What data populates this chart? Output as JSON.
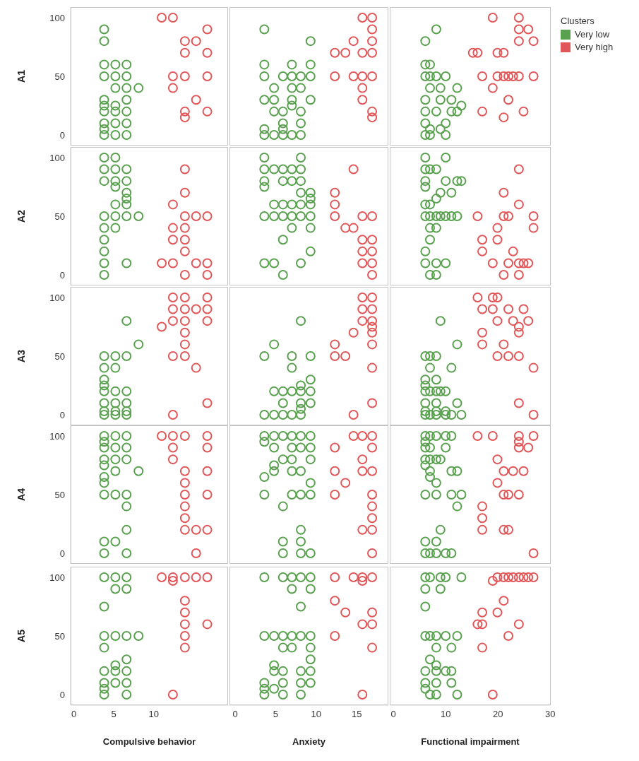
{
  "chart_data": [
    {
      "type": "scatter",
      "ylabel": "A1",
      "xlim": [
        -0.4,
        19.3
      ],
      "xticks": [
        0,
        5,
        10
      ],
      "ylim": [
        -9,
        109
      ],
      "yticks": [
        0,
        50,
        100
      ],
      "tick_labels": "y",
      "marker": "circle",
      "series": [
        {
          "color": "#59a14f",
          "x": [
            3.8,
            3.8,
            3.8,
            5.2,
            6.6,
            3.8,
            5.2,
            6.6,
            5.2,
            6.6,
            8.1,
            3.8,
            6.6,
            3.8,
            5.2,
            3.8,
            5.2,
            6.6,
            3.8,
            5.2,
            6.6,
            3.8,
            3.8,
            5.2,
            6.6
          ],
          "values": [
            90,
            80,
            60,
            60,
            60,
            50,
            50,
            50,
            40,
            40,
            40,
            30,
            30,
            25,
            25,
            20,
            20,
            20,
            10,
            10,
            10,
            5,
            0,
            0,
            0
          ]
        },
        {
          "color": "#e15759",
          "x": [
            11.0,
            12.4,
            16.7,
            13.9,
            15.3,
            13.9,
            16.7,
            12.4,
            13.9,
            16.7,
            12.4,
            15.3,
            13.9,
            16.7,
            13.9
          ],
          "values": [
            100,
            100,
            90,
            80,
            80,
            70,
            70,
            50,
            50,
            50,
            40,
            30,
            20,
            20,
            15
          ]
        }
      ]
    },
    {
      "type": "scatter",
      "xlim": [
        -0.7,
        18.9
      ],
      "xticks": [
        0,
        5,
        10,
        15
      ],
      "ylim": [
        -9,
        109
      ],
      "yticks": [
        0,
        50,
        100
      ],
      "tick_labels": false,
      "marker": "circle",
      "series": [
        {
          "color": "#59a14f",
          "x": [
            3.6,
            9.3,
            3.6,
            7.0,
            9.3,
            3.6,
            5.9,
            7.0,
            8.1,
            9.3,
            4.8,
            7.0,
            8.1,
            3.6,
            4.8,
            7.0,
            9.3,
            7.0,
            4.8,
            5.9,
            8.1,
            5.9,
            8.1,
            3.6,
            5.9,
            3.6,
            4.8,
            5.9,
            7.0,
            8.1
          ],
          "values": [
            90,
            80,
            60,
            60,
            60,
            50,
            50,
            50,
            50,
            50,
            40,
            40,
            40,
            30,
            30,
            30,
            30,
            25,
            20,
            20,
            20,
            10,
            10,
            5,
            5,
            0,
            0,
            0,
            0,
            0
          ]
        },
        {
          "color": "#e15759",
          "x": [
            15.7,
            16.9,
            16.9,
            14.6,
            16.9,
            12.3,
            13.6,
            15.7,
            16.9,
            12.3,
            14.6,
            15.7,
            16.9,
            15.7,
            15.7,
            16.9,
            16.9
          ],
          "values": [
            100,
            100,
            90,
            80,
            80,
            70,
            70,
            70,
            70,
            50,
            50,
            50,
            50,
            40,
            30,
            20,
            15
          ]
        }
      ]
    },
    {
      "type": "scatter",
      "xlim": [
        -0.7,
        30.1
      ],
      "xticks": [
        0,
        10,
        20,
        30
      ],
      "ylim": [
        -9,
        109
      ],
      "yticks": [
        0,
        50,
        100
      ],
      "tick_labels": false,
      "marker": "circle",
      "legend": "right",
      "legend_title": "Clusters",
      "series": [
        {
          "name": "Very low",
          "color": "#59a14f",
          "x": [
            8.2,
            6.1,
            6.1,
            7.0,
            6.1,
            7.0,
            8.2,
            10.0,
            7.0,
            9.0,
            12.2,
            6.1,
            9.0,
            11.1,
            13.0,
            6.1,
            8.2,
            11.1,
            12.2,
            6.1,
            10.0,
            7.0,
            9.0,
            6.1,
            7.0,
            10.0
          ],
          "values": [
            90,
            80,
            60,
            60,
            50,
            50,
            50,
            50,
            40,
            40,
            40,
            30,
            30,
            30,
            25,
            20,
            20,
            20,
            20,
            10,
            10,
            5,
            5,
            0,
            0,
            0
          ]
        },
        {
          "name": "Very high",
          "color": "#e15759",
          "x": [
            19.0,
            24.0,
            24.0,
            25.8,
            24.0,
            26.8,
            15.2,
            16.1,
            19.9,
            21.1,
            17.0,
            19.9,
            21.1,
            22.0,
            22.9,
            24.0,
            26.8,
            19.0,
            22.0,
            17.0,
            24.9,
            21.1
          ],
          "values": [
            100,
            100,
            90,
            90,
            80,
            80,
            70,
            70,
            70,
            70,
            50,
            50,
            50,
            50,
            50,
            50,
            50,
            40,
            30,
            20,
            20,
            15
          ]
        }
      ]
    },
    {
      "type": "scatter",
      "ylabel": "A2",
      "xlim": [
        -0.4,
        19.3
      ],
      "xticks": [
        0,
        5,
        10
      ],
      "ylim": [
        -9,
        109
      ],
      "yticks": [
        0,
        50,
        100
      ],
      "tick_labels": "y",
      "marker": "circle",
      "series": [
        {
          "color": "#59a14f",
          "x": [
            3.8,
            5.2,
            3.8,
            5.2,
            6.6,
            3.8,
            5.2,
            6.6,
            5.2,
            6.6,
            6.6,
            5.2,
            6.6,
            3.8,
            5.2,
            6.6,
            8.1,
            3.8,
            5.2,
            3.8,
            3.8,
            3.8,
            6.6,
            3.8
          ],
          "values": [
            100,
            100,
            90,
            90,
            90,
            80,
            80,
            80,
            75,
            70,
            65,
            60,
            60,
            50,
            50,
            50,
            50,
            40,
            40,
            30,
            20,
            10,
            10,
            0
          ]
        },
        {
          "color": "#e15759",
          "x": [
            13.9,
            13.9,
            12.4,
            13.9,
            15.3,
            16.7,
            12.4,
            13.9,
            12.4,
            13.9,
            13.9,
            11.0,
            12.4,
            15.3,
            16.7,
            13.9,
            16.7
          ],
          "values": [
            90,
            70,
            60,
            50,
            50,
            50,
            40,
            40,
            30,
            30,
            20,
            10,
            10,
            10,
            10,
            0,
            0
          ]
        }
      ]
    },
    {
      "type": "scatter",
      "xlim": [
        -0.7,
        18.9
      ],
      "xticks": [
        0,
        5,
        10,
        15
      ],
      "ylim": [
        -9,
        109
      ],
      "yticks": [
        0,
        50,
        100
      ],
      "tick_labels": false,
      "marker": "circle",
      "series": [
        {
          "color": "#59a14f",
          "x": [
            3.6,
            8.1,
            3.6,
            4.8,
            5.9,
            7.0,
            8.1,
            3.6,
            5.9,
            7.0,
            8.1,
            3.6,
            8.1,
            9.3,
            9.3,
            4.8,
            5.9,
            7.0,
            8.1,
            9.3,
            3.6,
            4.8,
            5.9,
            7.0,
            8.1,
            9.3,
            7.0,
            9.3,
            5.9,
            9.3,
            3.6,
            4.8,
            8.1,
            5.9
          ],
          "values": [
            100,
            100,
            90,
            90,
            90,
            90,
            90,
            80,
            80,
            80,
            80,
            75,
            70,
            70,
            65,
            60,
            60,
            60,
            60,
            60,
            50,
            50,
            50,
            50,
            50,
            50,
            40,
            40,
            30,
            20,
            10,
            10,
            10,
            0
          ]
        },
        {
          "color": "#e15759",
          "x": [
            14.6,
            12.3,
            12.3,
            12.3,
            15.7,
            16.9,
            13.6,
            14.6,
            15.7,
            16.9,
            15.7,
            16.9,
            15.7,
            16.9,
            16.9
          ],
          "values": [
            90,
            70,
            60,
            50,
            50,
            50,
            40,
            40,
            30,
            30,
            20,
            20,
            10,
            10,
            0
          ]
        }
      ]
    },
    {
      "type": "scatter",
      "xlim": [
        -0.7,
        30.1
      ],
      "xticks": [
        0,
        10,
        20,
        30
      ],
      "ylim": [
        -9,
        109
      ],
      "yticks": [
        0,
        50,
        100
      ],
      "tick_labels": false,
      "marker": "circle",
      "series": [
        {
          "color": "#59a14f",
          "x": [
            6.1,
            10.0,
            6.1,
            7.0,
            8.2,
            6.1,
            10.0,
            12.2,
            13.0,
            6.1,
            9.0,
            11.1,
            8.2,
            6.1,
            7.0,
            6.1,
            7.0,
            8.2,
            9.0,
            10.0,
            11.1,
            12.2,
            7.0,
            8.2,
            7.0,
            6.1,
            6.1,
            8.2,
            10.0,
            7.0,
            8.2
          ],
          "values": [
            100,
            100,
            90,
            90,
            90,
            80,
            80,
            80,
            80,
            75,
            70,
            70,
            65,
            60,
            60,
            50,
            50,
            50,
            50,
            50,
            50,
            50,
            40,
            40,
            30,
            20,
            10,
            10,
            10,
            0,
            0
          ]
        },
        {
          "color": "#e15759",
          "x": [
            24.0,
            21.1,
            24.0,
            16.1,
            21.1,
            22.0,
            26.8,
            19.9,
            26.8,
            17.0,
            19.9,
            17.0,
            22.9,
            19.0,
            22.0,
            24.0,
            24.9,
            25.8,
            21.1,
            24.0
          ],
          "values": [
            90,
            70,
            60,
            50,
            50,
            50,
            50,
            40,
            40,
            30,
            30,
            20,
            20,
            10,
            10,
            10,
            10,
            10,
            0,
            0
          ]
        }
      ]
    },
    {
      "type": "scatter",
      "ylabel": "A3",
      "xlim": [
        -0.4,
        19.3
      ],
      "xticks": [
        0,
        5,
        10
      ],
      "ylim": [
        -9,
        109
      ],
      "yticks": [
        0,
        50,
        100
      ],
      "tick_labels": "y",
      "marker": "circle",
      "series": [
        {
          "color": "#59a14f",
          "x": [
            6.6,
            8.1,
            3.8,
            5.2,
            6.6,
            3.8,
            5.2,
            3.8,
            3.8,
            3.8,
            5.2,
            6.6,
            3.8,
            5.2,
            6.6,
            3.8,
            5.2,
            6.6,
            3.8,
            5.2,
            6.6
          ],
          "values": [
            80,
            60,
            50,
            50,
            50,
            40,
            40,
            30,
            25,
            20,
            20,
            20,
            10,
            10,
            10,
            3,
            3,
            3,
            0,
            0,
            0
          ]
        },
        {
          "color": "#e15759",
          "x": [
            12.4,
            13.9,
            16.7,
            12.4,
            13.9,
            15.3,
            16.7,
            12.4,
            13.9,
            16.7,
            11.0,
            13.9,
            13.9,
            12.4,
            13.9,
            15.3,
            16.7,
            12.4
          ],
          "values": [
            100,
            100,
            100,
            90,
            90,
            90,
            90,
            80,
            80,
            80,
            75,
            70,
            60,
            50,
            50,
            40,
            10,
            0
          ]
        }
      ]
    },
    {
      "type": "scatter",
      "xlim": [
        -0.7,
        18.9
      ],
      "xticks": [
        0,
        5,
        10,
        15
      ],
      "ylim": [
        -9,
        109
      ],
      "yticks": [
        0,
        50,
        100
      ],
      "tick_labels": false,
      "marker": "circle",
      "series": [
        {
          "color": "#59a14f",
          "x": [
            8.1,
            4.8,
            3.6,
            7.0,
            9.3,
            7.0,
            9.3,
            8.1,
            4.8,
            5.9,
            7.0,
            8.1,
            9.3,
            5.9,
            8.1,
            9.3,
            8.1,
            3.6,
            4.8,
            5.9,
            7.0,
            8.1
          ],
          "values": [
            80,
            60,
            50,
            50,
            50,
            40,
            30,
            25,
            20,
            20,
            20,
            20,
            20,
            10,
            10,
            10,
            5,
            0,
            0,
            0,
            0,
            0
          ]
        },
        {
          "color": "#e15759",
          "x": [
            15.7,
            16.9,
            15.7,
            16.9,
            15.7,
            16.9,
            16.9,
            14.6,
            16.9,
            12.3,
            16.9,
            12.3,
            13.6,
            16.9,
            16.9,
            14.6
          ],
          "values": [
            100,
            100,
            90,
            90,
            80,
            80,
            75,
            70,
            70,
            60,
            60,
            50,
            50,
            40,
            10,
            0
          ]
        }
      ]
    },
    {
      "type": "scatter",
      "xlim": [
        -0.7,
        30.1
      ],
      "xticks": [
        0,
        10,
        20,
        30
      ],
      "ylim": [
        -9,
        109
      ],
      "yticks": [
        0,
        50,
        100
      ],
      "tick_labels": false,
      "marker": "circle",
      "series": [
        {
          "color": "#59a14f",
          "x": [
            9.0,
            12.2,
            6.1,
            7.0,
            8.2,
            7.0,
            11.1,
            6.1,
            8.2,
            6.1,
            6.1,
            7.0,
            8.2,
            9.0,
            10.0,
            6.1,
            8.2,
            12.2,
            6.1,
            8.2,
            10.0,
            6.1,
            7.0,
            8.2,
            10.0,
            11.1,
            13.0
          ],
          "values": [
            80,
            60,
            50,
            50,
            50,
            40,
            40,
            30,
            30,
            25,
            20,
            20,
            20,
            20,
            20,
            10,
            10,
            10,
            3,
            3,
            3,
            0,
            0,
            0,
            0,
            0,
            0
          ]
        },
        {
          "color": "#e15759",
          "x": [
            16.1,
            19.0,
            19.9,
            17.0,
            19.0,
            22.0,
            24.9,
            19.9,
            22.9,
            25.8,
            24.0,
            17.0,
            24.0,
            17.0,
            21.1,
            19.9,
            22.0,
            24.0,
            26.8,
            24.0,
            26.8
          ],
          "values": [
            100,
            100,
            100,
            90,
            90,
            90,
            90,
            80,
            80,
            80,
            75,
            70,
            70,
            60,
            60,
            50,
            50,
            50,
            40,
            10,
            0
          ]
        }
      ]
    },
    {
      "type": "scatter",
      "ylabel": "A4",
      "xlim": [
        -0.4,
        19.3
      ],
      "xticks": [
        0,
        5,
        10
      ],
      "ylim": [
        -9,
        109
      ],
      "yticks": [
        0,
        50,
        100
      ],
      "tick_labels": "y",
      "marker": "circle",
      "series": [
        {
          "color": "#59a14f",
          "x": [
            3.8,
            5.2,
            6.6,
            3.8,
            3.8,
            5.2,
            6.6,
            3.8,
            5.2,
            6.6,
            3.8,
            5.2,
            8.1,
            3.8,
            3.8,
            3.8,
            5.2,
            6.6,
            6.6,
            6.6,
            3.8,
            5.2,
            3.8,
            6.6
          ],
          "values": [
            100,
            100,
            100,
            95,
            90,
            90,
            90,
            80,
            80,
            80,
            75,
            70,
            70,
            65,
            60,
            50,
            50,
            50,
            40,
            20,
            10,
            10,
            0,
            0
          ]
        },
        {
          "color": "#e15759",
          "x": [
            11.0,
            12.4,
            13.9,
            16.7,
            12.4,
            16.7,
            12.4,
            13.9,
            16.7,
            13.9,
            13.9,
            16.7,
            13.9,
            13.9,
            13.9,
            15.3,
            16.7,
            15.3
          ],
          "values": [
            100,
            100,
            100,
            100,
            90,
            90,
            80,
            70,
            70,
            60,
            50,
            50,
            40,
            30,
            20,
            20,
            20,
            0
          ]
        }
      ]
    },
    {
      "type": "scatter",
      "xlim": [
        -0.7,
        18.9
      ],
      "xticks": [
        0,
        5,
        10,
        15
      ],
      "ylim": [
        -9,
        109
      ],
      "yticks": [
        0,
        50,
        100
      ],
      "tick_labels": false,
      "marker": "circle",
      "series": [
        {
          "color": "#59a14f",
          "x": [
            3.6,
            4.8,
            5.9,
            7.0,
            8.1,
            9.3,
            3.6,
            4.8,
            7.0,
            8.1,
            9.3,
            5.9,
            7.0,
            9.3,
            4.8,
            4.8,
            7.0,
            8.1,
            3.6,
            9.3,
            3.6,
            7.0,
            8.1,
            9.3,
            5.9,
            8.1,
            5.9,
            8.1,
            5.9,
            8.1,
            9.3
          ],
          "values": [
            100,
            100,
            100,
            100,
            100,
            100,
            95,
            90,
            90,
            90,
            90,
            80,
            80,
            80,
            75,
            70,
            70,
            70,
            65,
            60,
            50,
            50,
            50,
            50,
            40,
            20,
            10,
            10,
            0,
            0,
            0
          ]
        },
        {
          "color": "#e15759",
          "x": [
            14.6,
            15.7,
            16.9,
            12.3,
            16.9,
            15.7,
            12.3,
            15.7,
            16.9,
            13.6,
            12.3,
            16.9,
            16.9,
            16.9,
            15.7,
            16.9,
            16.9
          ],
          "values": [
            100,
            100,
            100,
            90,
            90,
            80,
            70,
            70,
            70,
            60,
            50,
            50,
            40,
            30,
            20,
            20,
            0
          ]
        }
      ]
    },
    {
      "type": "scatter",
      "xlim": [
        -0.7,
        30.1
      ],
      "xticks": [
        0,
        10,
        20,
        30
      ],
      "ylim": [
        -9,
        109
      ],
      "yticks": [
        0,
        50,
        100
      ],
      "tick_labels": false,
      "marker": "circle",
      "series": [
        {
          "color": "#59a14f",
          "x": [
            6.1,
            7.0,
            8.2,
            10.0,
            11.1,
            6.1,
            6.1,
            7.0,
            10.0,
            6.1,
            7.0,
            8.2,
            9.0,
            6.1,
            7.0,
            11.1,
            12.2,
            7.0,
            8.2,
            6.1,
            8.2,
            11.1,
            13.0,
            12.2,
            9.0,
            6.1,
            8.2,
            6.1,
            7.0,
            8.2,
            10.0,
            11.1
          ],
          "values": [
            100,
            100,
            100,
            100,
            100,
            95,
            90,
            90,
            90,
            80,
            80,
            80,
            80,
            75,
            70,
            70,
            70,
            65,
            60,
            50,
            50,
            50,
            50,
            40,
            20,
            10,
            10,
            0,
            0,
            0,
            0,
            0
          ]
        },
        {
          "color": "#e15759",
          "x": [
            16.1,
            19.0,
            24.0,
            26.8,
            24.0,
            24.0,
            25.8,
            19.9,
            21.1,
            22.9,
            24.9,
            19.9,
            21.1,
            22.0,
            24.0,
            17.0,
            17.0,
            17.0,
            21.1,
            22.0,
            26.8
          ],
          "values": [
            100,
            100,
            100,
            100,
            95,
            90,
            90,
            80,
            70,
            70,
            70,
            60,
            50,
            50,
            50,
            40,
            30,
            20,
            20,
            20,
            0
          ]
        }
      ]
    },
    {
      "type": "scatter",
      "ylabel": "A5",
      "xlabel": "Compulsive behavior",
      "xlim": [
        -0.4,
        19.3
      ],
      "xticks": [
        0,
        5,
        10
      ],
      "ylim": [
        -9,
        109
      ],
      "yticks": [
        0,
        50,
        100
      ],
      "marker": "circle",
      "series": [
        {
          "color": "#59a14f",
          "x": [
            3.8,
            5.2,
            6.6,
            5.2,
            6.6,
            3.8,
            3.8,
            5.2,
            6.6,
            8.1,
            3.8,
            6.6,
            5.2,
            3.8,
            5.2,
            6.6,
            3.8,
            5.2,
            6.6,
            3.8,
            3.8,
            6.6
          ],
          "values": [
            100,
            100,
            100,
            90,
            90,
            75,
            50,
            50,
            50,
            50,
            40,
            30,
            25,
            20,
            20,
            20,
            10,
            10,
            10,
            5,
            0,
            0
          ]
        },
        {
          "color": "#e15759",
          "x": [
            11.0,
            12.4,
            13.9,
            15.3,
            16.7,
            12.4,
            13.9,
            13.9,
            13.9,
            16.7,
            13.9,
            13.9,
            12.4
          ],
          "values": [
            100,
            100,
            100,
            100,
            100,
            97,
            80,
            70,
            60,
            60,
            50,
            40,
            0
          ]
        }
      ]
    },
    {
      "type": "scatter",
      "xlabel": "Anxiety",
      "xlim": [
        -0.7,
        18.9
      ],
      "xticks": [
        0,
        5,
        10,
        15
      ],
      "ylim": [
        -9,
        109
      ],
      "yticks": [
        0,
        50,
        100
      ],
      "tick_labels": "x",
      "marker": "circle",
      "series": [
        {
          "color": "#59a14f",
          "x": [
            3.6,
            5.9,
            7.0,
            8.1,
            9.3,
            7.0,
            9.3,
            8.1,
            3.6,
            4.8,
            5.9,
            7.0,
            8.1,
            9.3,
            5.9,
            7.0,
            9.3,
            9.3,
            4.8,
            4.8,
            5.9,
            8.1,
            9.3,
            3.6,
            5.9,
            8.1,
            9.3,
            3.6,
            4.8,
            3.6,
            5.9,
            8.1
          ],
          "values": [
            100,
            100,
            100,
            100,
            100,
            90,
            90,
            75,
            50,
            50,
            50,
            50,
            50,
            50,
            40,
            40,
            40,
            30,
            25,
            20,
            20,
            20,
            20,
            10,
            10,
            10,
            10,
            5,
            5,
            0,
            0,
            0
          ]
        },
        {
          "color": "#e15759",
          "x": [
            12.3,
            14.6,
            15.7,
            16.9,
            15.7,
            12.3,
            13.6,
            16.9,
            15.7,
            16.9,
            12.3,
            16.9,
            15.7
          ],
          "values": [
            100,
            100,
            100,
            100,
            97,
            80,
            70,
            70,
            60,
            60,
            50,
            40,
            0
          ]
        }
      ]
    },
    {
      "type": "scatter",
      "xlabel": "Functional impairment",
      "xlim": [
        -0.7,
        30.1
      ],
      "xticks": [
        0,
        10,
        20,
        30
      ],
      "ylim": [
        -9,
        109
      ],
      "yticks": [
        0,
        50,
        100
      ],
      "tick_labels": "x",
      "marker": "circle",
      "series": [
        {
          "color": "#59a14f",
          "x": [
            6.1,
            7.0,
            9.0,
            10.0,
            13.0,
            6.1,
            9.0,
            6.1,
            6.1,
            7.0,
            8.2,
            10.0,
            12.2,
            8.2,
            11.1,
            7.0,
            8.2,
            6.1,
            8.2,
            10.0,
            11.1,
            6.1,
            8.2,
            11.1,
            6.1,
            7.0,
            8.2,
            12.2
          ],
          "values": [
            100,
            100,
            100,
            100,
            100,
            90,
            90,
            75,
            50,
            50,
            50,
            50,
            50,
            40,
            40,
            30,
            25,
            20,
            20,
            20,
            20,
            10,
            10,
            10,
            5,
            0,
            0,
            0
          ]
        },
        {
          "color": "#e15759",
          "x": [
            19.9,
            21.1,
            22.0,
            22.9,
            24.0,
            24.9,
            25.8,
            26.8,
            19.0,
            21.1,
            17.0,
            19.9,
            16.1,
            17.0,
            24.0,
            22.0,
            17.0,
            19.0
          ],
          "values": [
            100,
            100,
            100,
            100,
            100,
            100,
            100,
            100,
            97,
            80,
            70,
            70,
            60,
            60,
            60,
            50,
            40,
            0
          ]
        }
      ]
    }
  ]
}
